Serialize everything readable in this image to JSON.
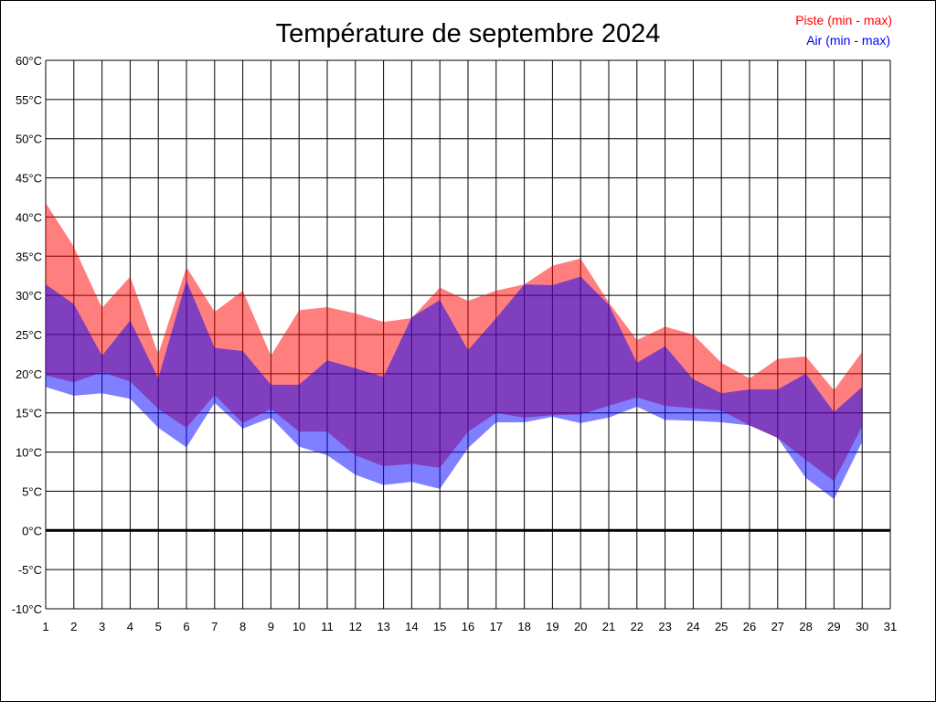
{
  "chart_data": {
    "type": "area",
    "title": "Température de septembre 2024",
    "xlabel": "",
    "ylabel": "",
    "x_ticks": [
      "1",
      "2",
      "3",
      "4",
      "5",
      "6",
      "7",
      "8",
      "9",
      "10",
      "11",
      "12",
      "13",
      "14",
      "15",
      "16",
      "17",
      "18",
      "19",
      "20",
      "21",
      "22",
      "23",
      "24",
      "25",
      "26",
      "27",
      "28",
      "29",
      "30",
      "31"
    ],
    "y_ticks": [
      "-10°C",
      "-5°C",
      "0°C",
      "5°C",
      "10°C",
      "15°C",
      "20°C",
      "25°C",
      "30°C",
      "35°C",
      "40°C",
      "45°C",
      "50°C",
      "55°C",
      "60°C"
    ],
    "xlim": [
      1,
      31
    ],
    "ylim": [
      -10,
      60
    ],
    "y_step": 5,
    "grid": true,
    "legend_position": "top-right",
    "x": [
      1,
      2,
      3,
      4,
      5,
      6,
      7,
      8,
      9,
      10,
      11,
      12,
      13,
      14,
      15,
      16,
      17,
      18,
      19,
      20,
      21,
      22,
      23,
      24,
      25,
      26,
      27,
      28,
      29,
      30
    ],
    "series": [
      {
        "name": "Piste (min - max)",
        "color": "#ff0000",
        "min": [
          19.8,
          18.9,
          20.2,
          19.0,
          15.5,
          13.1,
          17.3,
          13.7,
          15.5,
          12.6,
          12.6,
          9.6,
          8.2,
          8.5,
          8.0,
          12.6,
          15.0,
          14.4,
          14.7,
          14.8,
          15.9,
          17.0,
          15.9,
          15.6,
          15.3,
          13.4,
          11.8,
          9.0,
          6.3,
          13.3
        ],
        "max": [
          41.8,
          36.2,
          28.4,
          32.4,
          22.5,
          33.6,
          27.9,
          30.6,
          22.3,
          28.1,
          28.5,
          27.7,
          26.6,
          27.1,
          31.0,
          29.3,
          30.6,
          31.4,
          33.8,
          34.7,
          29.1,
          24.3,
          26.0,
          25.0,
          21.4,
          19.4,
          21.9,
          22.2,
          17.9,
          22.8
        ]
      },
      {
        "name": "Air (min - max)",
        "color": "#0000ff",
        "min": [
          18.3,
          17.2,
          17.5,
          16.8,
          13.1,
          10.6,
          16.3,
          13.0,
          14.4,
          10.7,
          9.6,
          7.1,
          5.8,
          6.2,
          5.3,
          10.5,
          13.8,
          13.8,
          14.5,
          13.7,
          14.4,
          15.8,
          14.1,
          14.0,
          13.8,
          13.4,
          11.8,
          6.7,
          4.0,
          11.3
        ],
        "max": [
          31.4,
          28.9,
          22.3,
          26.8,
          19.4,
          31.9,
          23.3,
          22.9,
          18.6,
          18.6,
          21.7,
          20.7,
          19.6,
          27.2,
          29.4,
          23.0,
          27.1,
          31.4,
          31.3,
          32.4,
          28.8,
          21.4,
          23.5,
          19.3,
          17.5,
          18.0,
          18.0,
          20.0,
          15.1,
          18.3
        ]
      }
    ]
  }
}
